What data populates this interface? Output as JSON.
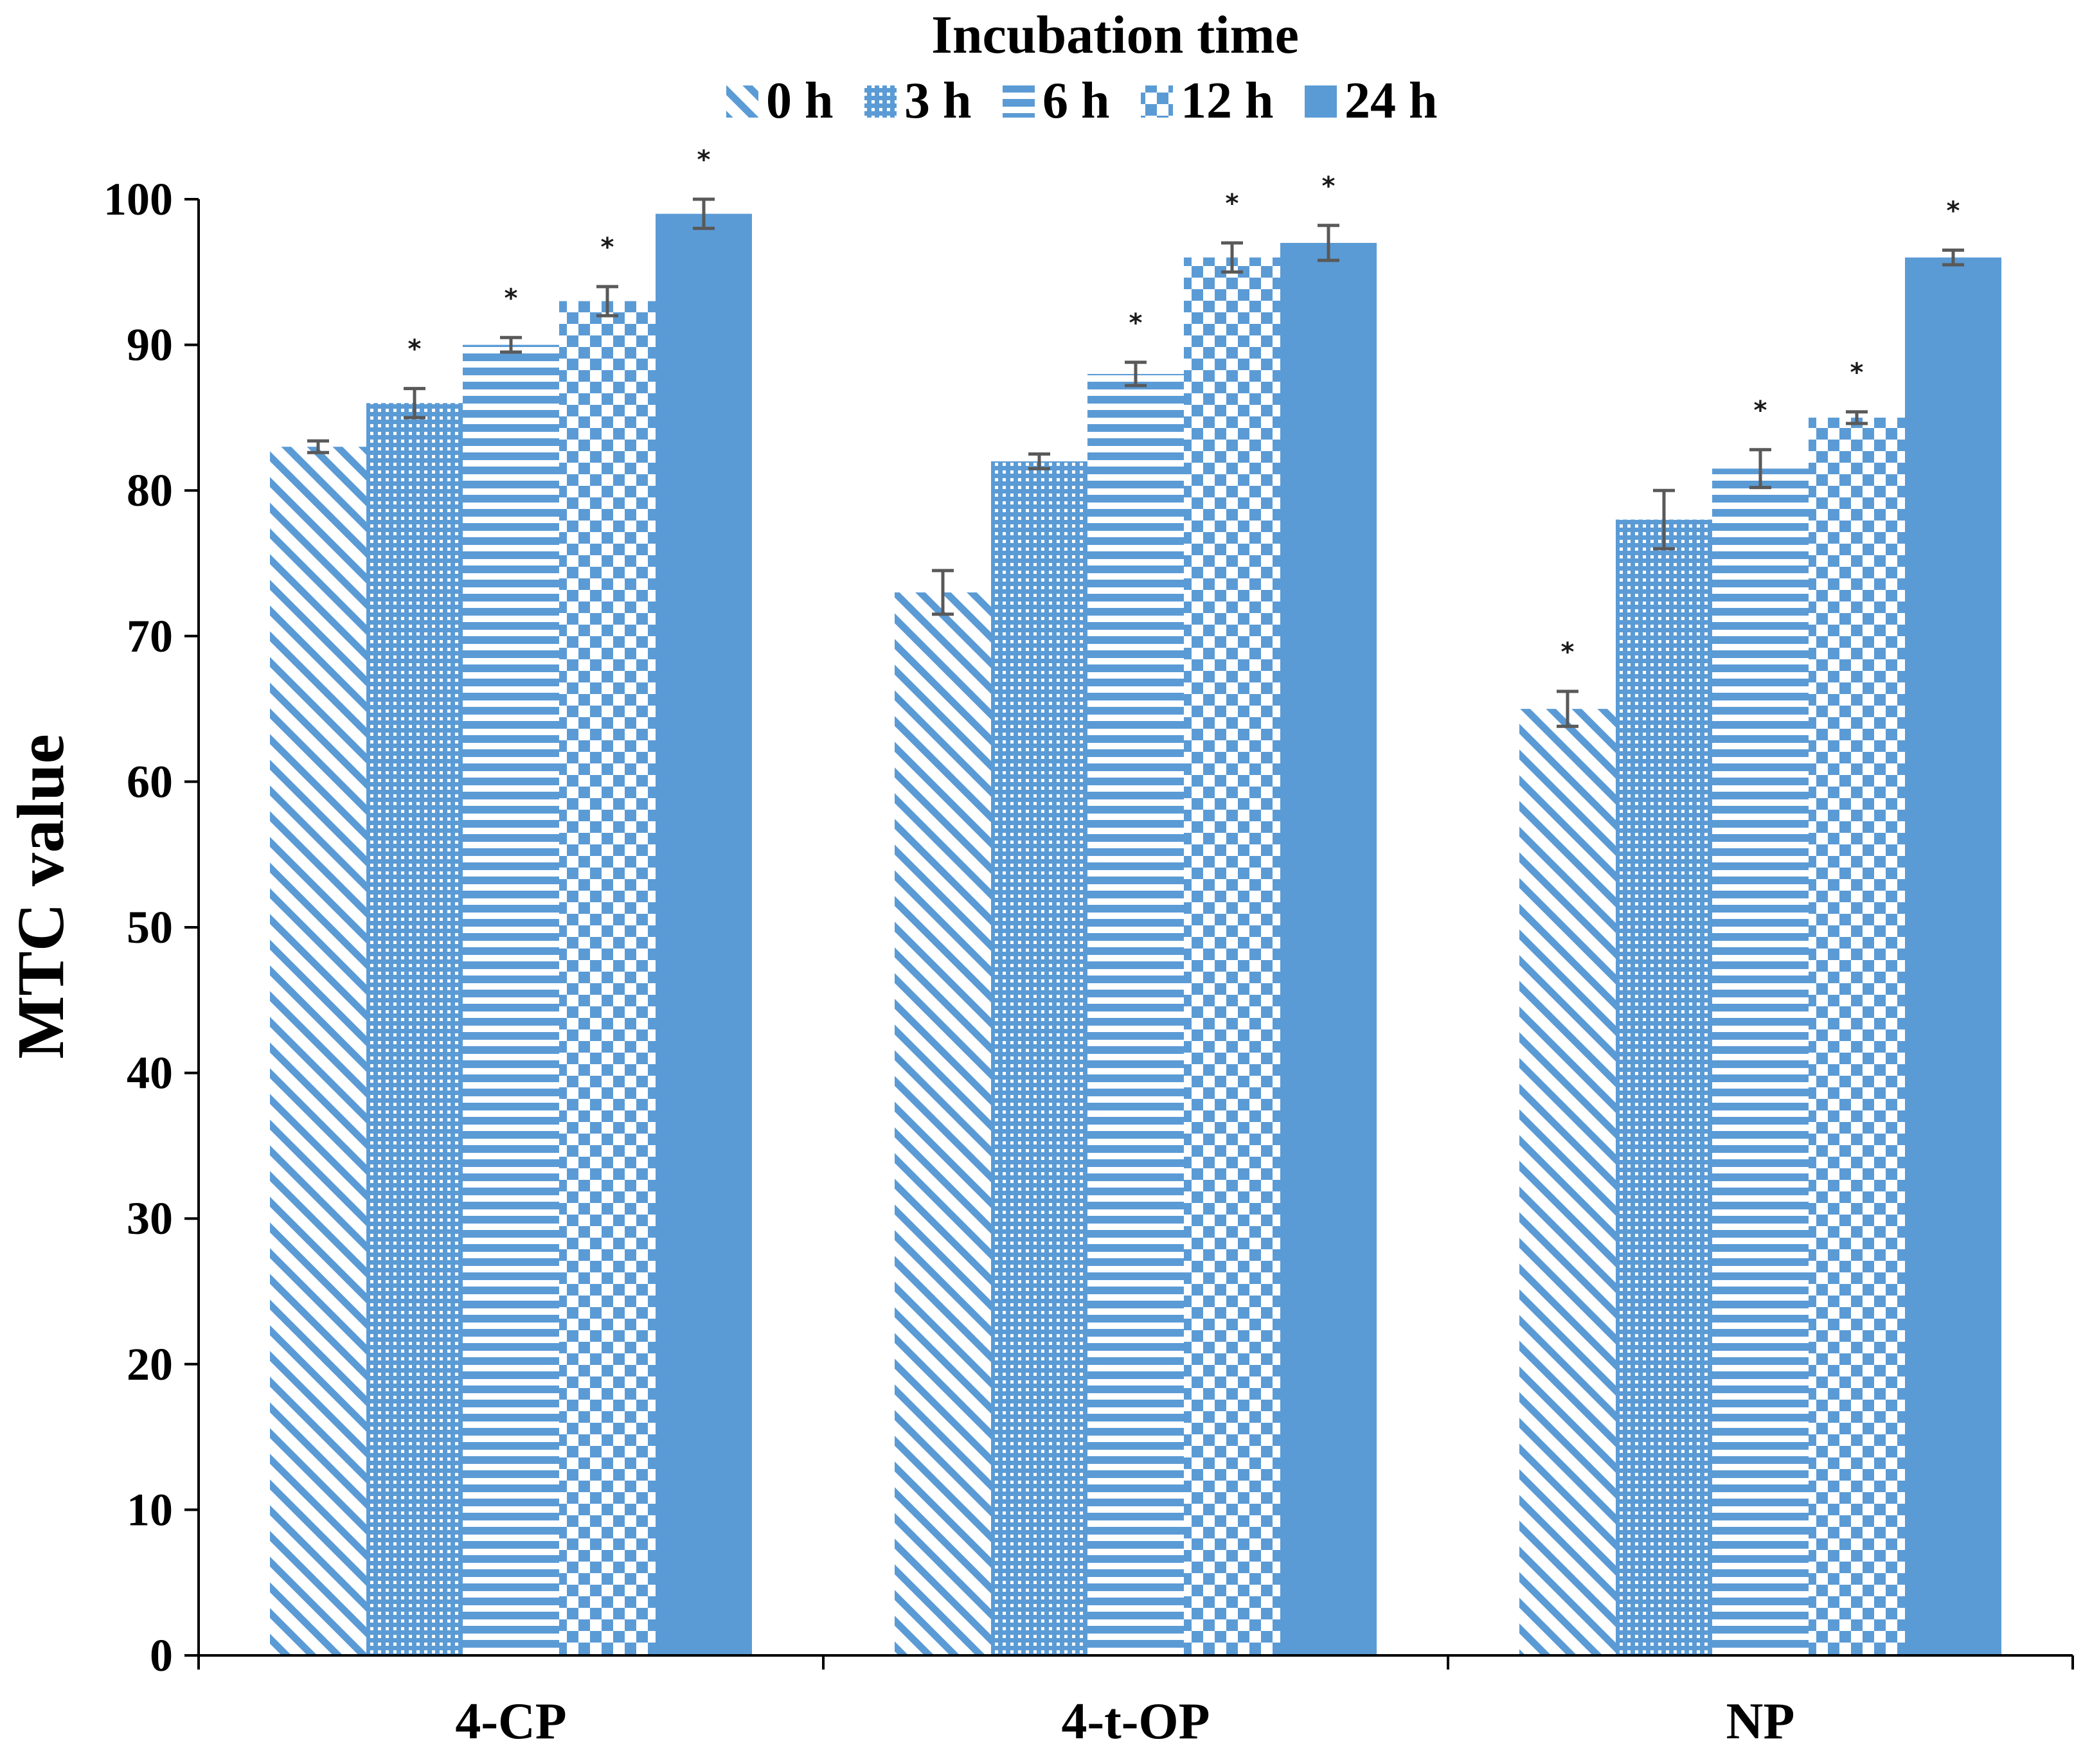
{
  "chart_data": {
    "type": "bar",
    "title": "Incubation time",
    "ylabel": "MTC value",
    "xlabel": "",
    "ylim": [
      0,
      100
    ],
    "ytick_step": 10,
    "categories": [
      "4-CP",
      "4-t-OP",
      "NP"
    ],
    "series": [
      {
        "name": "0 h",
        "pattern": "diagonal",
        "values": [
          83,
          73,
          65
        ],
        "errors": [
          0.4,
          1.5,
          1.2
        ],
        "significant": [
          false,
          false,
          true
        ]
      },
      {
        "name": "3 h",
        "pattern": "dots",
        "values": [
          86,
          82,
          78
        ],
        "errors": [
          1.0,
          0.5,
          2.0
        ],
        "significant": [
          true,
          false,
          false
        ]
      },
      {
        "name": "6 h",
        "pattern": "hlines",
        "values": [
          90,
          88,
          81.5
        ],
        "errors": [
          0.5,
          0.8,
          1.3
        ],
        "significant": [
          true,
          true,
          true
        ]
      },
      {
        "name": "12 h",
        "pattern": "checker",
        "values": [
          93,
          96,
          85
        ],
        "errors": [
          1.0,
          1.0,
          0.4
        ],
        "significant": [
          true,
          true,
          true
        ]
      },
      {
        "name": "24 h",
        "pattern": "solid",
        "values": [
          99,
          97,
          96
        ],
        "errors": [
          1.0,
          1.2,
          0.5
        ],
        "significant": [
          true,
          true,
          true
        ]
      }
    ],
    "significance_marker": "*",
    "grid": false,
    "legend_position": "top"
  },
  "colors": {
    "bar": "#5b9bd5",
    "error": "#595959",
    "axis": "#000000"
  }
}
